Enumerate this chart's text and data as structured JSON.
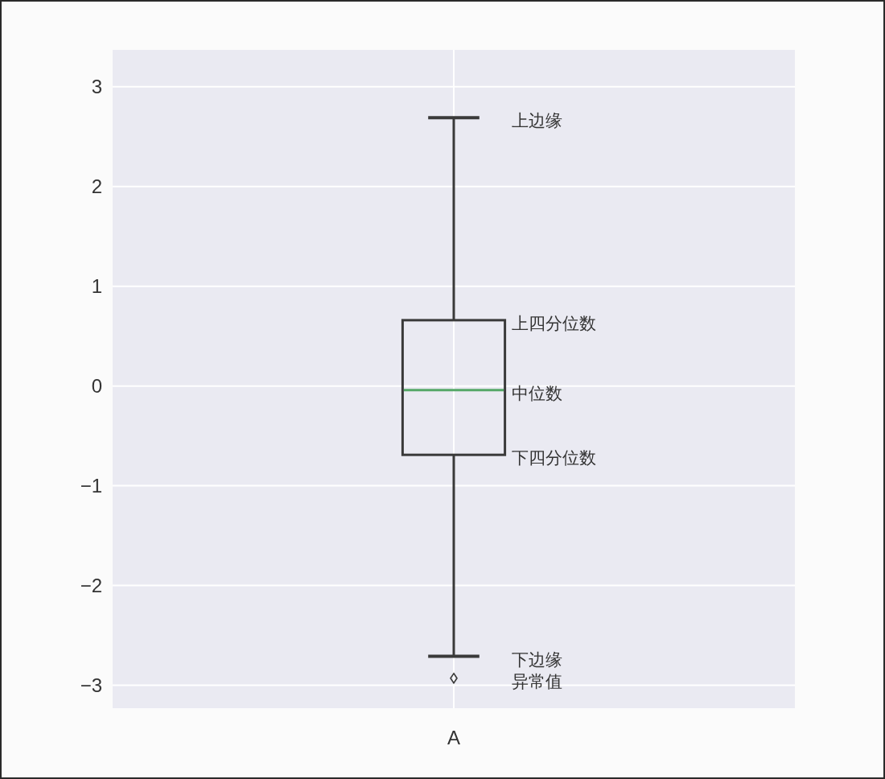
{
  "chart_data": {
    "type": "box",
    "categories": [
      "A"
    ],
    "boxes": [
      {
        "low": -2.71,
        "q1": -0.69,
        "median": -0.04,
        "q3": 0.66,
        "high": 2.69,
        "outliers": [
          -2.93
        ]
      }
    ],
    "color": "#3a3a3a",
    "ylim": [
      -3.23,
      3.37
    ],
    "yticks": [
      {
        "value": -3,
        "label": "−3"
      },
      {
        "value": -2,
        "label": "−2"
      },
      {
        "value": -1,
        "label": "−1"
      },
      0,
      1,
      2,
      3
    ],
    "grid": true,
    "marker": "diamond",
    "annotations": [
      "上边缘",
      "上四分位数",
      "中位数",
      "下四分位数",
      "下边缘",
      "异常值"
    ]
  }
}
